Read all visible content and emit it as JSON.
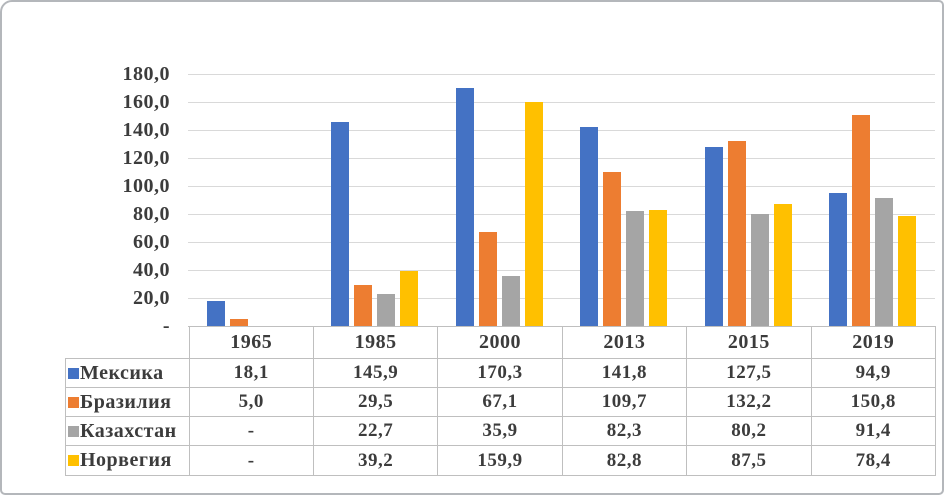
{
  "chart_data": {
    "type": "bar",
    "title": "",
    "categories": [
      "1965",
      "1985",
      "2000",
      "2013",
      "2015",
      "2019"
    ],
    "series": [
      {
        "name": "Мексика",
        "color": "#4472C4",
        "values": [
          18.1,
          145.9,
          170.3,
          141.8,
          127.5,
          94.9
        ],
        "display": [
          "18,1",
          "145,9",
          "170,3",
          "141,8",
          "127,5",
          "94,9"
        ]
      },
      {
        "name": "Бразилия",
        "color": "#ED7D31",
        "values": [
          5.0,
          29.5,
          67.1,
          109.7,
          132.2,
          150.8
        ],
        "display": [
          "5,0",
          "29,5",
          "67,1",
          "109,7",
          "132,2",
          "150,8"
        ]
      },
      {
        "name": "Казахстан",
        "color": "#A5A5A5",
        "values": [
          null,
          22.7,
          35.9,
          82.3,
          80.2,
          91.4
        ],
        "display": [
          "-",
          "22,7",
          "35,9",
          "82,3",
          "80,2",
          "91,4"
        ]
      },
      {
        "name": "Норвегия",
        "color": "#FFC000",
        "values": [
          null,
          39.2,
          159.9,
          82.8,
          87.5,
          78.4
        ],
        "display": [
          "-",
          "39,2",
          "159,9",
          "82,8",
          "87,5",
          "78,4"
        ]
      }
    ],
    "y_axis": {
      "max": 180,
      "min": 0,
      "step": 20,
      "tick_labels": [
        "180,0",
        "160,0",
        "140,0",
        "120,0",
        "100,0",
        "80,0",
        "60,0",
        "40,0",
        "20,0",
        "-"
      ]
    },
    "grid": true,
    "legend_position": "table-left",
    "colors": {
      "gridline": "#d9d9d9",
      "axis": "#bfbfbf",
      "table_border": "#bfbfbf",
      "text": "#3c3c3c"
    }
  }
}
